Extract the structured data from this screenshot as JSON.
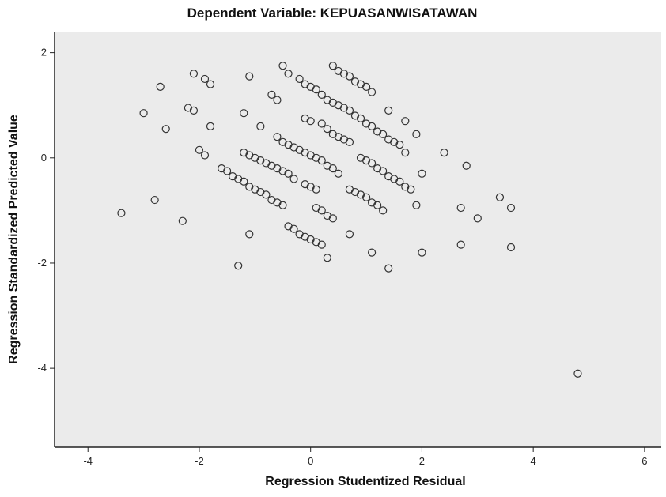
{
  "chart_data": {
    "type": "scatter",
    "title": "Dependent Variable: KEPUASANWISATAWAN",
    "xlabel": "Regression Studentized Residual",
    "ylabel": "Regression Standardized Predicted Value",
    "xlim": [
      -4.6,
      6.3
    ],
    "ylim": [
      -5.5,
      2.4
    ],
    "xticks": [
      -4,
      -2,
      0,
      2,
      4,
      6
    ],
    "yticks": [
      2,
      0,
      -2,
      -4
    ],
    "xtick_labels": [
      "-4",
      "-2",
      "0",
      "2",
      "4",
      "6"
    ],
    "ytick_labels": [
      "2",
      "0",
      "-2",
      "-4"
    ],
    "grid": false,
    "legend": "none",
    "plot_background": "#ebebeb",
    "marker_color": "#333333",
    "points": [
      [
        -3.4,
        -1.05
      ],
      [
        -3.0,
        0.85
      ],
      [
        -2.8,
        -0.8
      ],
      [
        -2.7,
        1.35
      ],
      [
        -2.6,
        0.55
      ],
      [
        -2.3,
        -1.2
      ],
      [
        -2.2,
        0.95
      ],
      [
        -2.1,
        0.9
      ],
      [
        -2.1,
        1.6
      ],
      [
        -2.0,
        0.15
      ],
      [
        -1.9,
        0.05
      ],
      [
        -1.9,
        1.5
      ],
      [
        -1.8,
        1.4
      ],
      [
        -1.8,
        0.6
      ],
      [
        -1.6,
        -0.2
      ],
      [
        -1.5,
        -0.25
      ],
      [
        -1.4,
        -0.35
      ],
      [
        -1.3,
        -0.4
      ],
      [
        -1.2,
        -0.45
      ],
      [
        -1.2,
        0.85
      ],
      [
        -1.2,
        0.1
      ],
      [
        -1.1,
        -0.55
      ],
      [
        -1.1,
        0.05
      ],
      [
        -1.1,
        1.55
      ],
      [
        -1.1,
        -1.45
      ],
      [
        -1.3,
        -2.05
      ],
      [
        -1.0,
        -0.6
      ],
      [
        -1.0,
        0.0
      ],
      [
        -0.9,
        -0.65
      ],
      [
        -0.9,
        -0.05
      ],
      [
        -0.9,
        0.6
      ],
      [
        -0.8,
        -0.7
      ],
      [
        -0.8,
        -0.1
      ],
      [
        -0.7,
        -0.8
      ],
      [
        -0.7,
        -0.15
      ],
      [
        -0.7,
        1.2
      ],
      [
        -0.6,
        -0.85
      ],
      [
        -0.6,
        -0.2
      ],
      [
        -0.6,
        0.4
      ],
      [
        -0.6,
        1.1
      ],
      [
        -0.5,
        -0.9
      ],
      [
        -0.5,
        -0.25
      ],
      [
        -0.5,
        0.3
      ],
      [
        -0.5,
        1.75
      ],
      [
        -0.4,
        -0.3
      ],
      [
        -0.4,
        0.25
      ],
      [
        -0.4,
        1.6
      ],
      [
        -0.4,
        -1.3
      ],
      [
        -0.3,
        -1.35
      ],
      [
        -0.3,
        -0.4
      ],
      [
        -0.3,
        0.2
      ],
      [
        -0.2,
        -1.45
      ],
      [
        -0.2,
        0.15
      ],
      [
        -0.2,
        1.5
      ],
      [
        -0.1,
        -1.5
      ],
      [
        -0.1,
        -0.5
      ],
      [
        -0.1,
        0.1
      ],
      [
        -0.1,
        0.75
      ],
      [
        -0.1,
        1.4
      ],
      [
        0.0,
        -1.55
      ],
      [
        0.0,
        -0.55
      ],
      [
        0.0,
        0.05
      ],
      [
        0.0,
        0.7
      ],
      [
        0.0,
        1.35
      ],
      [
        0.1,
        -1.6
      ],
      [
        0.1,
        -0.95
      ],
      [
        0.1,
        -0.6
      ],
      [
        0.1,
        0.0
      ],
      [
        0.1,
        1.3
      ],
      [
        0.2,
        -1.65
      ],
      [
        0.2,
        -1.0
      ],
      [
        0.2,
        -0.05
      ],
      [
        0.2,
        0.65
      ],
      [
        0.2,
        1.2
      ],
      [
        0.3,
        -1.1
      ],
      [
        0.3,
        -0.15
      ],
      [
        0.3,
        0.55
      ],
      [
        0.3,
        1.1
      ],
      [
        0.3,
        -1.9
      ],
      [
        0.4,
        -1.15
      ],
      [
        0.4,
        -0.2
      ],
      [
        0.4,
        0.45
      ],
      [
        0.4,
        1.05
      ],
      [
        0.4,
        1.75
      ],
      [
        0.5,
        -0.3
      ],
      [
        0.5,
        0.4
      ],
      [
        0.5,
        1.0
      ],
      [
        0.5,
        1.65
      ],
      [
        0.6,
        0.35
      ],
      [
        0.6,
        0.95
      ],
      [
        0.6,
        1.6
      ],
      [
        0.7,
        -1.45
      ],
      [
        0.7,
        -0.6
      ],
      [
        0.7,
        0.3
      ],
      [
        0.7,
        0.9
      ],
      [
        0.7,
        1.55
      ],
      [
        0.8,
        -0.65
      ],
      [
        0.8,
        0.8
      ],
      [
        0.8,
        1.45
      ],
      [
        0.9,
        -0.7
      ],
      [
        0.9,
        0.0
      ],
      [
        0.9,
        0.75
      ],
      [
        0.9,
        1.4
      ],
      [
        1.0,
        -0.75
      ],
      [
        1.0,
        -0.05
      ],
      [
        1.0,
        0.65
      ],
      [
        1.0,
        1.35
      ],
      [
        1.1,
        -1.8
      ],
      [
        1.1,
        -0.85
      ],
      [
        1.1,
        -0.1
      ],
      [
        1.1,
        0.6
      ],
      [
        1.1,
        1.25
      ],
      [
        1.2,
        -0.9
      ],
      [
        1.2,
        -0.2
      ],
      [
        1.2,
        0.5
      ],
      [
        1.3,
        -1.0
      ],
      [
        1.3,
        -0.25
      ],
      [
        1.3,
        0.45
      ],
      [
        1.4,
        -2.1
      ],
      [
        1.4,
        -0.35
      ],
      [
        1.4,
        0.35
      ],
      [
        1.4,
        0.9
      ],
      [
        1.5,
        -0.4
      ],
      [
        1.5,
        0.3
      ],
      [
        1.6,
        -0.45
      ],
      [
        1.6,
        0.25
      ],
      [
        1.7,
        -0.55
      ],
      [
        1.7,
        0.7
      ],
      [
        1.7,
        0.1
      ],
      [
        1.8,
        -0.6
      ],
      [
        1.9,
        -0.9
      ],
      [
        1.9,
        0.45
      ],
      [
        2.0,
        -1.8
      ],
      [
        2.0,
        -0.3
      ],
      [
        2.4,
        0.1
      ],
      [
        2.7,
        -1.65
      ],
      [
        2.7,
        -0.95
      ],
      [
        2.8,
        -0.15
      ],
      [
        3.0,
        -1.15
      ],
      [
        3.4,
        -0.75
      ],
      [
        3.6,
        -0.95
      ],
      [
        3.6,
        -1.7
      ],
      [
        4.8,
        -4.1
      ]
    ]
  }
}
